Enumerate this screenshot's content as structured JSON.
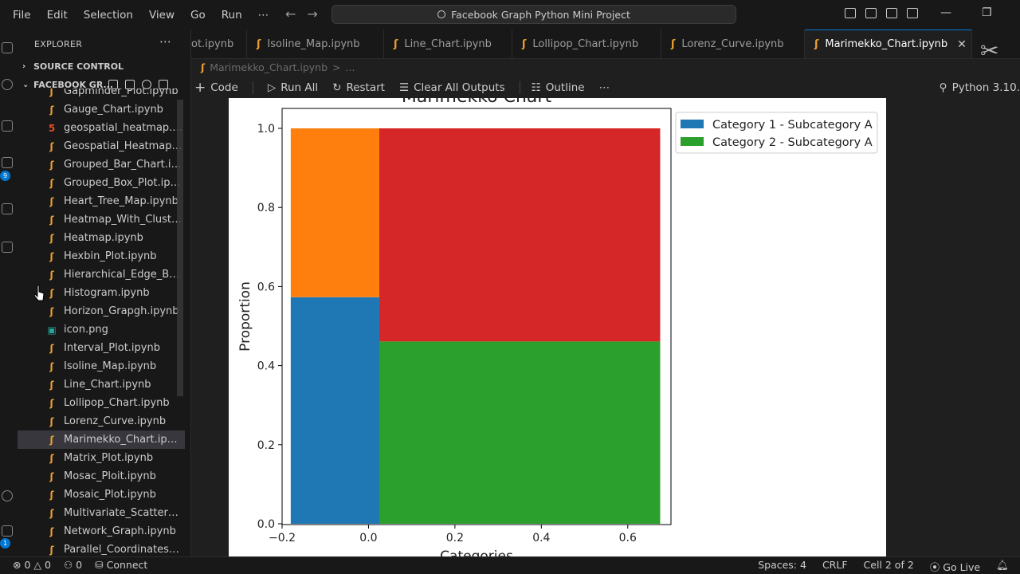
{
  "menu": [
    "File",
    "Edit",
    "Selection",
    "View",
    "Go",
    "Run",
    "⋯"
  ],
  "command_center": "Facebook Graph Python Mini Project",
  "explorer": {
    "title": "EXPLORER",
    "more": "⋯",
    "source_control": "SOURCE CONTROL",
    "folder": "FACEBOOK GR...",
    "files": [
      {
        "name": "Gapminder_Plot.ipynb",
        "type": "ipynb"
      },
      {
        "name": "Gauge_Chart.ipynb",
        "type": "ipynb"
      },
      {
        "name": "geospatial_heatmap.html",
        "type": "html"
      },
      {
        "name": "Geospatial_Heatmap.ip...",
        "type": "ipynb"
      },
      {
        "name": "Grouped_Bar_Chart.ipy...",
        "type": "ipynb"
      },
      {
        "name": "Grouped_Box_Plot.ipynb",
        "type": "ipynb"
      },
      {
        "name": "Heart_Tree_Map.ipynb",
        "type": "ipynb"
      },
      {
        "name": "Heatmap_With_Clusteri...",
        "type": "ipynb"
      },
      {
        "name": "Heatmap.ipynb",
        "type": "ipynb"
      },
      {
        "name": "Hexbin_Plot.ipynb",
        "type": "ipynb"
      },
      {
        "name": "Hierarchical_Edge_Bun...",
        "type": "ipynb"
      },
      {
        "name": "Histogram.ipynb",
        "type": "ipynb"
      },
      {
        "name": "Horizon_Grapgh.ipynb",
        "type": "ipynb"
      },
      {
        "name": "icon.png",
        "type": "png"
      },
      {
        "name": "Interval_Plot.ipynb",
        "type": "ipynb"
      },
      {
        "name": "Isoline_Map.ipynb",
        "type": "ipynb"
      },
      {
        "name": "Line_Chart.ipynb",
        "type": "ipynb"
      },
      {
        "name": "Lollipop_Chart.ipynb",
        "type": "ipynb"
      },
      {
        "name": "Lorenz_Curve.ipynb",
        "type": "ipynb"
      },
      {
        "name": "Marimekko_Chart.ipynb",
        "type": "ipynb",
        "active": true
      },
      {
        "name": "Matrix_Plot.ipynb",
        "type": "ipynb"
      },
      {
        "name": "Mosac_Ploit.ipynb",
        "type": "ipynb"
      },
      {
        "name": "Mosaic_Plot.ipynb",
        "type": "ipynb"
      },
      {
        "name": "Multivariate_Scatter_Pl...",
        "type": "ipynb"
      },
      {
        "name": "Network_Graph.ipynb",
        "type": "ipynb"
      },
      {
        "name": "Parallel_Coordinates_Pl...",
        "type": "ipynb"
      }
    ]
  },
  "tabs": [
    {
      "label": "ot.ipynb"
    },
    {
      "label": "Isoline_Map.ipynb"
    },
    {
      "label": "Line_Chart.ipynb"
    },
    {
      "label": "Lollipop_Chart.ipynb"
    },
    {
      "label": "Lorenz_Curve.ipynb"
    },
    {
      "label": "Marimekko_Chart.ipynb",
      "active": true
    }
  ],
  "breadcrumb": [
    "Marimekko_Chart.ipynb",
    ">",
    "..."
  ],
  "toolbar": {
    "code": "Code",
    "run_all": "Run All",
    "restart": "Restart",
    "clear": "Clear All Outputs",
    "outline": "Outline",
    "more": "⋯",
    "kernel": "Python 3.10."
  },
  "chart_data": {
    "type": "bar",
    "title": "Marimekko Chart",
    "xlabel": "Categories",
    "ylabel": "Proportion",
    "xlim": [
      -0.2,
      0.7
    ],
    "ylim": [
      0,
      1.0
    ],
    "xticks": [
      "−0.2",
      "0.0",
      "0.2",
      "0.4",
      "0.6"
    ],
    "yticks": [
      "0.0",
      "0.2",
      "0.4",
      "0.6",
      "0.8",
      "1.0"
    ],
    "legend_position": "upper-right-outside",
    "bars": [
      {
        "x_left": -0.18,
        "x_right": 0.025,
        "segments": [
          {
            "bottom": 0.0,
            "top": 0.573,
            "color": "#1f77b4"
          },
          {
            "bottom": 0.573,
            "top": 1.0,
            "color": "#ff7f0e"
          }
        ]
      },
      {
        "x_left": 0.025,
        "x_right": 0.675,
        "segments": [
          {
            "bottom": 0.0,
            "top": 0.461,
            "color": "#2ca02c"
          },
          {
            "bottom": 0.461,
            "top": 1.0,
            "color": "#d62728"
          }
        ]
      }
    ],
    "legend": [
      {
        "name": "Category 1 - Subcategory A",
        "color": "#1f77b4"
      },
      {
        "name": "Category 2 - Subcategory A",
        "color": "#2ca02c"
      }
    ]
  },
  "statusbar": {
    "errors": "0",
    "warnings": "0",
    "ports": "0",
    "connect": "Connect",
    "spaces": "Spaces: 4",
    "eol": "CRLF",
    "cell": "Cell 2 of 2",
    "golive": "Go Live"
  },
  "activity_badges": [
    "9",
    "1"
  ]
}
